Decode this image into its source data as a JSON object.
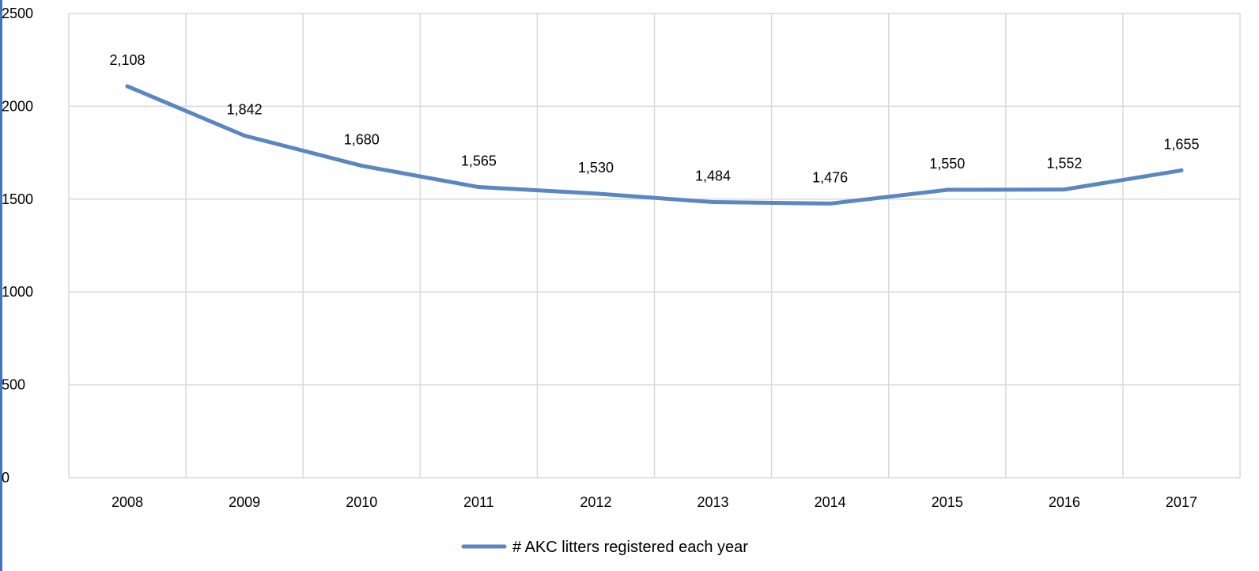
{
  "colors": {
    "series_line": "#5b86c1",
    "gridline": "#d9d9d9",
    "left_border": "#4472c4"
  },
  "chart_data": {
    "type": "line",
    "title": "",
    "xlabel": "",
    "ylabel": "",
    "categories": [
      "2008",
      "2009",
      "2010",
      "2011",
      "2012",
      "2013",
      "2014",
      "2015",
      "2016",
      "2017"
    ],
    "series": [
      {
        "name": "# AKC litters registered each year",
        "values": [
          2108,
          1842,
          1680,
          1565,
          1530,
          1484,
          1476,
          1550,
          1552,
          1655
        ],
        "data_labels": [
          "2,108",
          "1,842",
          "1,680",
          "1,565",
          "1,530",
          "1,484",
          "1,476",
          "1,550",
          "1,552",
          "1,655"
        ]
      }
    ],
    "ylim": [
      0,
      2500
    ],
    "yticks": [
      "0",
      "500",
      "1000",
      "1500",
      "2000",
      "2500"
    ],
    "grid": true,
    "legend": "bottom"
  }
}
